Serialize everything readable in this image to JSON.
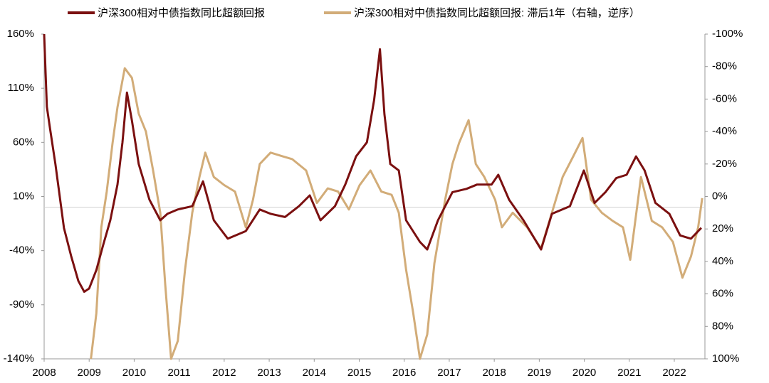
{
  "chart_data": {
    "type": "line",
    "x_is_year": true,
    "xlim": [
      2008,
      2022.68
    ],
    "xticks": [
      2008,
      2009,
      2010,
      2011,
      2012,
      2013,
      2014,
      2015,
      2016,
      2017,
      2018,
      2019,
      2020,
      2021,
      2022
    ],
    "ylim": [
      -140,
      160
    ],
    "yticks": [
      {
        "value": 160,
        "label": "160%"
      },
      {
        "value": 110,
        "label": "110%"
      },
      {
        "value": 60,
        "label": "60%"
      },
      {
        "value": 10,
        "label": "10%"
      },
      {
        "value": -40,
        "label": "-40%"
      },
      {
        "value": -90,
        "label": "-90%"
      },
      {
        "value": -140,
        "label": "-140%"
      }
    ],
    "y2lim": [
      100,
      -100
    ],
    "y2ticks": [
      {
        "value": -100,
        "label": "-100%"
      },
      {
        "value": -80,
        "label": "-80%"
      },
      {
        "value": -60,
        "label": "-60%"
      },
      {
        "value": -40,
        "label": "-40%"
      },
      {
        "value": -20,
        "label": "-20%"
      },
      {
        "value": 0,
        "label": "0%"
      },
      {
        "value": 20,
        "label": "20%"
      },
      {
        "value": 40,
        "label": "40%"
      },
      {
        "value": 60,
        "label": "60%"
      },
      {
        "value": 80,
        "label": "80%"
      },
      {
        "value": 100,
        "label": "100%"
      }
    ],
    "legend": "top",
    "series": [
      {
        "name": "沪深300相对中债指数同比超额回报",
        "color": "#7b1010",
        "x": [
          2008.0,
          2008.06,
          2008.13,
          2008.25,
          2008.44,
          2008.6,
          2008.76,
          2008.89,
          2009.0,
          2009.16,
          2009.31,
          2009.47,
          2009.63,
          2009.74,
          2009.84,
          2009.95,
          2010.1,
          2010.34,
          2010.58,
          2010.74,
          2010.97,
          2011.29,
          2011.53,
          2011.77,
          2012.08,
          2012.48,
          2012.79,
          2013.03,
          2013.35,
          2013.66,
          2013.9,
          2014.14,
          2014.46,
          2014.69,
          2014.93,
          2015.17,
          2015.33,
          2015.46,
          2015.56,
          2015.69,
          2015.88,
          2016.04,
          2016.35,
          2016.51,
          2016.75,
          2017.07,
          2017.38,
          2017.62,
          2017.94,
          2018.09,
          2018.33,
          2018.65,
          2019.04,
          2019.28,
          2019.68,
          2019.99,
          2020.23,
          2020.47,
          2020.71,
          2020.94,
          2021.15,
          2021.34,
          2021.58,
          2021.89,
          2022.13,
          2022.37,
          2022.6
        ],
        "values": [
          160,
          93,
          73,
          40,
          -19,
          -45,
          -68,
          -78,
          -75,
          -58,
          -35,
          -12,
          21,
          60,
          106,
          80,
          40,
          7,
          -12,
          -6,
          -2,
          1,
          24,
          -12,
          -29,
          -22,
          -2,
          -6,
          -9,
          1,
          11,
          -12,
          1,
          21,
          47,
          60,
          99,
          146,
          86,
          40,
          34,
          -12,
          -32,
          -39,
          -12,
          14,
          17,
          21,
          21,
          30,
          7,
          -12,
          -39,
          -6,
          1,
          34,
          4,
          14,
          27,
          30,
          47,
          34,
          4,
          -6,
          -26,
          -29,
          -19
        ]
      },
      {
        "name": "沪深300相对中债指数同比超额回报: 滞后1年（右轴，逆序）",
        "color": "#d2ac78",
        "axis": "y2",
        "x": [
          2009.04,
          2009.16,
          2009.27,
          2009.39,
          2009.52,
          2009.63,
          2009.79,
          2009.95,
          2010.1,
          2010.26,
          2010.42,
          2010.58,
          2010.69,
          2010.82,
          2010.97,
          2011.13,
          2011.29,
          2011.45,
          2011.58,
          2011.77,
          2012.0,
          2012.24,
          2012.48,
          2012.64,
          2012.79,
          2013.03,
          2013.27,
          2013.51,
          2013.82,
          2014.06,
          2014.3,
          2014.53,
          2014.77,
          2015.01,
          2015.25,
          2015.49,
          2015.72,
          2015.88,
          2016.04,
          2016.2,
          2016.35,
          2016.51,
          2016.67,
          2016.91,
          2017.07,
          2017.22,
          2017.43,
          2017.59,
          2017.78,
          2018.02,
          2018.17,
          2018.41,
          2018.73,
          2019.04,
          2019.28,
          2019.52,
          2019.76,
          2019.96,
          2020.15,
          2020.39,
          2020.63,
          2020.86,
          2021.02,
          2021.26,
          2021.5,
          2021.73,
          2021.97,
          2022.18,
          2022.37,
          2022.53,
          2022.62
        ],
        "values": [
          100,
          72,
          19,
          -3,
          -33,
          -55,
          -79,
          -73,
          -51,
          -40,
          -16,
          10,
          54,
          100,
          89,
          45,
          10,
          -12,
          -27,
          -12,
          -7,
          -3,
          19,
          2,
          -20,
          -27,
          -25,
          -23,
          -16,
          4,
          -5,
          -3,
          8,
          -7,
          -16,
          -3,
          -1,
          10,
          45,
          72,
          100,
          85,
          41,
          2,
          -20,
          -33,
          -47,
          -20,
          -12,
          2,
          19,
          10,
          19,
          32,
          10,
          -12,
          -25,
          -36,
          2,
          10,
          15,
          19,
          39,
          -12,
          15,
          19,
          28,
          50,
          37,
          19,
          1
        ]
      }
    ]
  }
}
